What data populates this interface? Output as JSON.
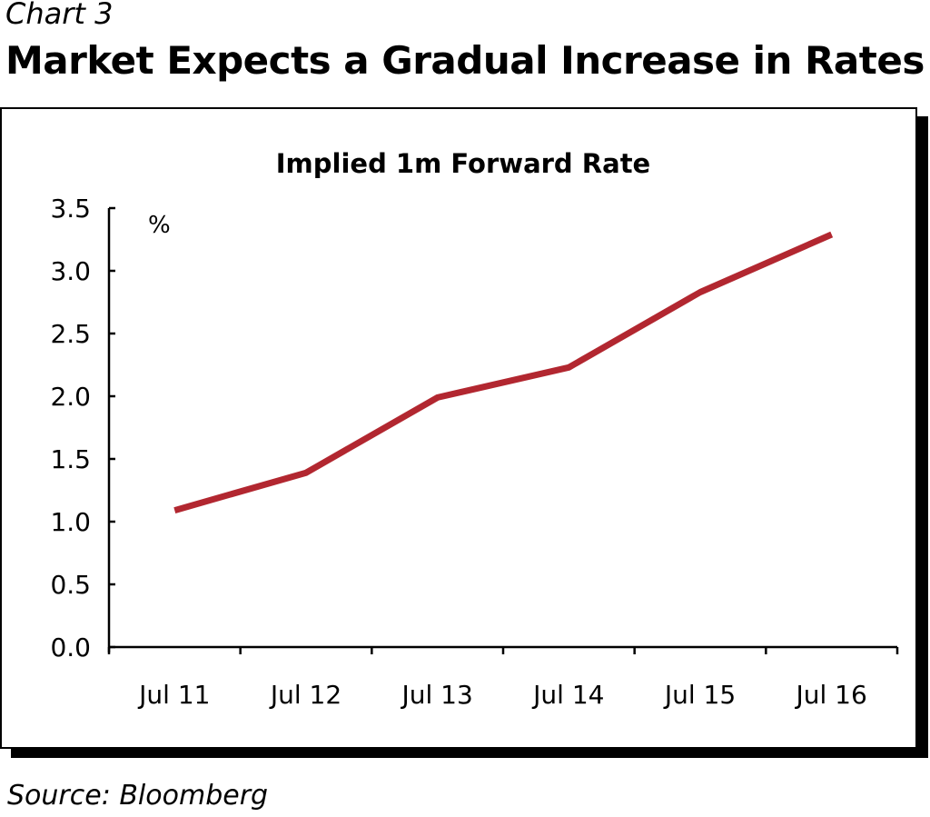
{
  "header": {
    "chart_label": "Chart 3",
    "title": "Market Expects a Gradual Increase in Rates"
  },
  "footer": {
    "source": "Source: Bloomberg"
  },
  "colors": {
    "line": "#b22730",
    "axis": "#000000",
    "background": "#ffffff"
  },
  "chart_data": {
    "type": "line",
    "title": "Implied 1m Forward Rate",
    "unit_label": "%",
    "xlabel": "",
    "ylabel": "%",
    "categories": [
      "Jul 11",
      "Jul 12",
      "Jul 13",
      "Jul 14",
      "Jul 15",
      "Jul 16"
    ],
    "ylim": [
      0,
      3.5
    ],
    "yticks": [
      "0.0",
      "0.5",
      "1.0",
      "1.5",
      "2.0",
      "2.5",
      "3.0",
      "3.5"
    ],
    "grid": false,
    "series": [
      {
        "name": "Implied 1m Forward Rate",
        "values": [
          1.09,
          1.39,
          1.99,
          2.23,
          2.83,
          3.29
        ]
      }
    ]
  }
}
